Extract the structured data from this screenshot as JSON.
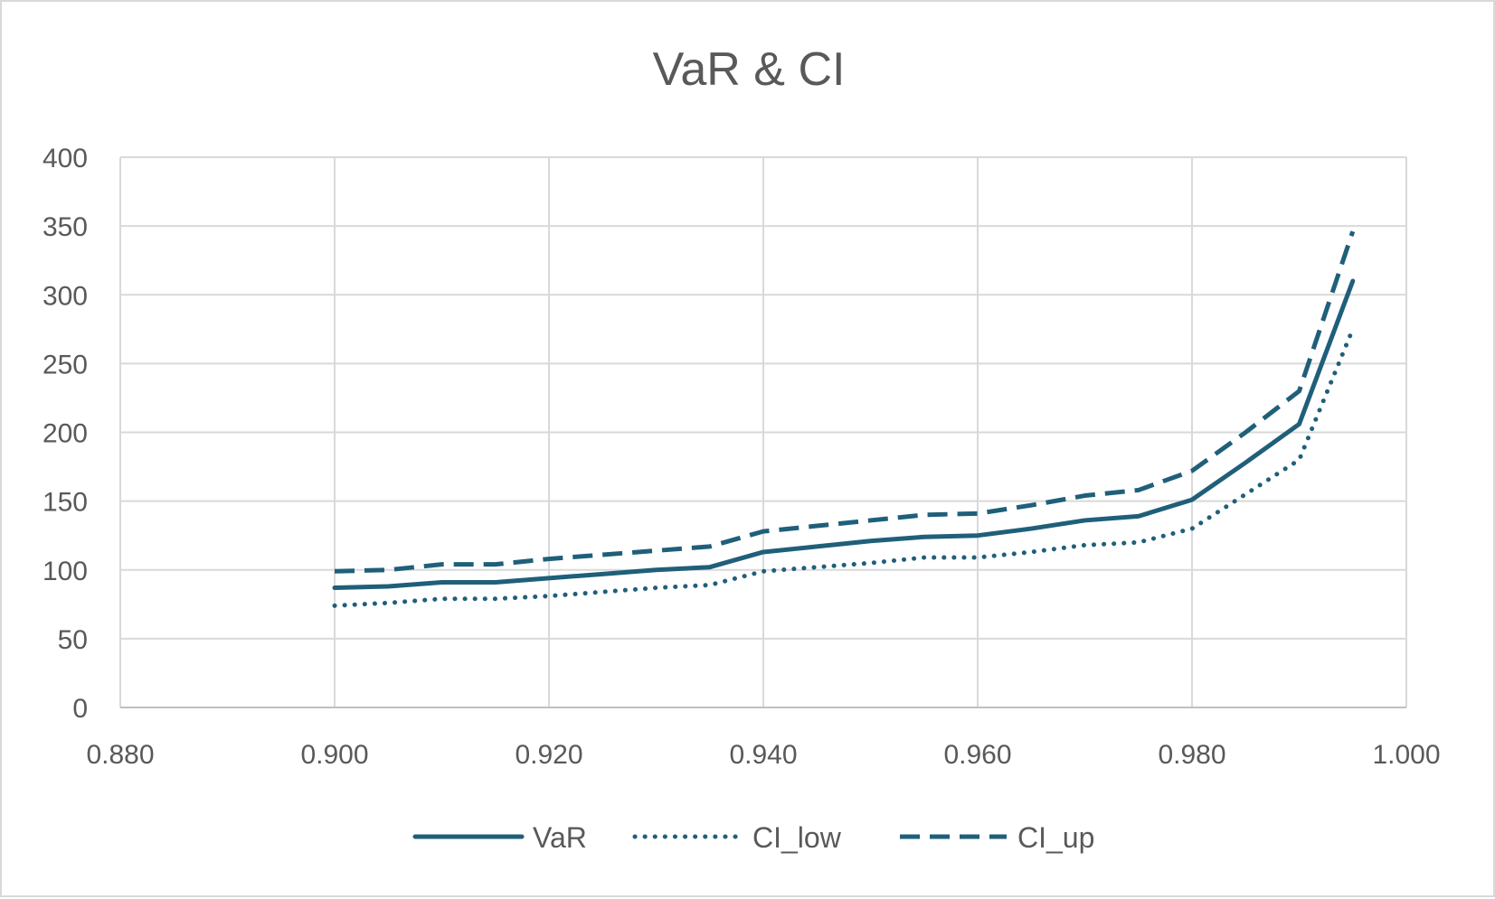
{
  "chart_data": {
    "type": "line",
    "title": "VaR & CI",
    "xlabel": "",
    "ylabel": "",
    "xlim": [
      0.88,
      1.0
    ],
    "ylim": [
      0,
      400
    ],
    "x_ticks": [
      "0.880",
      "0.900",
      "0.920",
      "0.940",
      "0.960",
      "0.980",
      "1.000"
    ],
    "y_ticks": [
      "0",
      "50",
      "100",
      "150",
      "200",
      "250",
      "300",
      "350",
      "400"
    ],
    "grid": true,
    "legend_position": "bottom",
    "x": [
      0.9,
      0.905,
      0.91,
      0.915,
      0.92,
      0.925,
      0.93,
      0.935,
      0.94,
      0.945,
      0.95,
      0.955,
      0.96,
      0.965,
      0.97,
      0.975,
      0.98,
      0.985,
      0.99,
      0.995
    ],
    "series": [
      {
        "name": "VaR",
        "style": "solid",
        "color": "#1f5f7a",
        "values": [
          87,
          88,
          91,
          91,
          94,
          97,
          100,
          102,
          113,
          117,
          121,
          124,
          125,
          130,
          136,
          139,
          151,
          178,
          206,
          310
        ]
      },
      {
        "name": "CI_low",
        "style": "dotted",
        "color": "#1f5f7a",
        "values": [
          74,
          76,
          79,
          79,
          81,
          84,
          87,
          89,
          99,
          102,
          105,
          109,
          109,
          113,
          118,
          120,
          130,
          155,
          180,
          275
        ]
      },
      {
        "name": "CI_up",
        "style": "dashed",
        "color": "#1f5f7a",
        "values": [
          99,
          100,
          104,
          104,
          108,
          111,
          114,
          117,
          128,
          132,
          136,
          140,
          141,
          147,
          154,
          158,
          172,
          200,
          230,
          346
        ]
      }
    ]
  }
}
